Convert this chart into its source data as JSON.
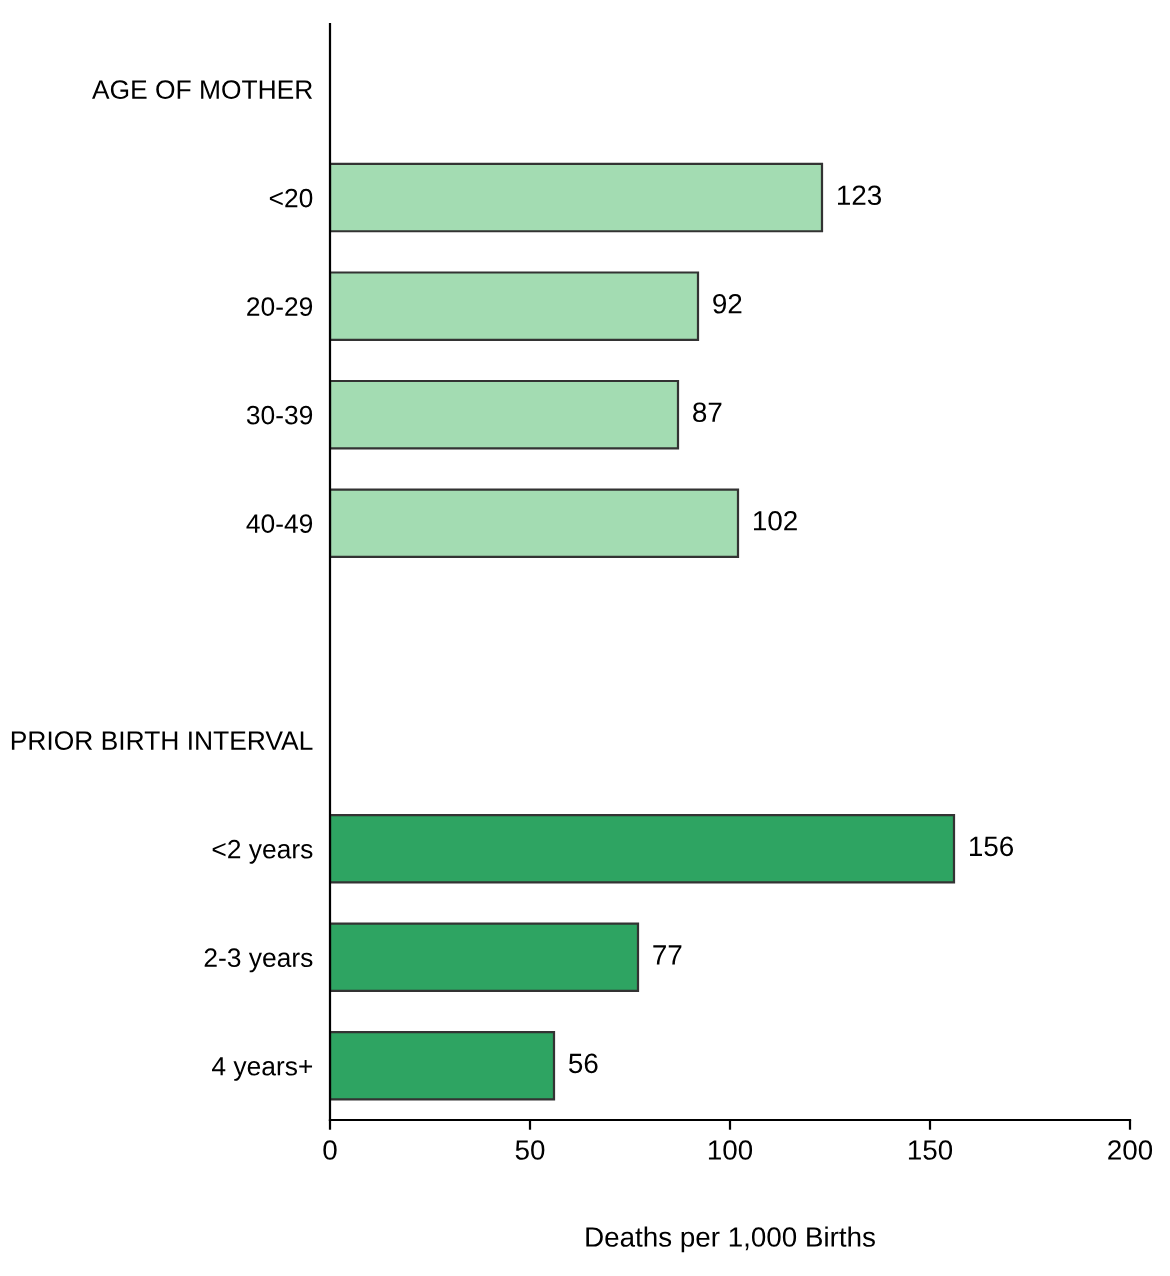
{
  "chart_data": {
    "type": "bar",
    "orientation": "horizontal",
    "xlabel": "Deaths per 1,000 Births",
    "categories": [
      "AGE OF MOTHER",
      "<20",
      "20-29",
      "30-39",
      "40-49",
      null,
      "PRIOR BIRTH INTERVAL",
      "<2 years",
      "2-3 years",
      "4 years+"
    ],
    "values": [
      null,
      123,
      92,
      87,
      102,
      null,
      null,
      156,
      77,
      56
    ],
    "colors": [
      null,
      "#a3dcb2",
      "#a3dcb2",
      "#a3dcb2",
      "#a3dcb2",
      null,
      null,
      "#2ea462",
      "#2ea462",
      "#2ea462"
    ],
    "xlim": [
      0,
      200
    ],
    "xticks": [
      0,
      50,
      100,
      150,
      200
    ],
    "data_labels": true,
    "grid": false,
    "legend": false
  }
}
